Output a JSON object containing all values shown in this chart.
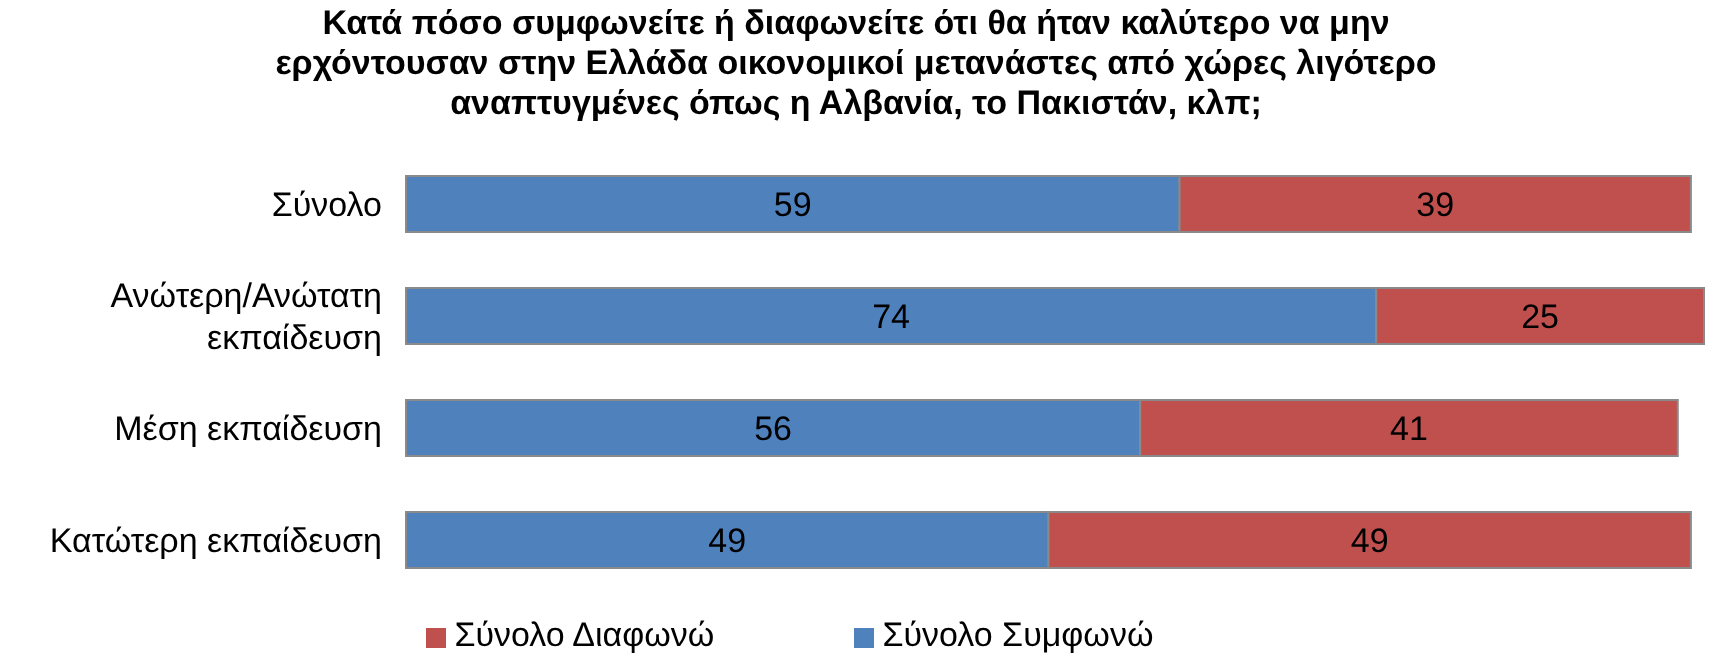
{
  "chart_data": {
    "type": "bar",
    "orientation": "horizontal",
    "stacked": true,
    "title": "Κατά πόσο συμφωνείτε ή διαφωνείτε ότι θα ήταν καλύτερο να μην ερχόντουσαν στην Ελλάδα οικονομικοί μετανάστες από χώρες λιγότερο αναπτυγμένες όπως η Αλβανία, το Πακιστάν, κλπ;",
    "categories": [
      "Σύνολο",
      "Ανώτερη/Ανώτατη εκπαίδευση",
      "Μέση εκπαίδευση",
      "Κατώτερη εκπαίδευση"
    ],
    "series": [
      {
        "name": "Σύνολο Συμφωνώ",
        "color": "#4f81bd",
        "values": [
          59,
          74,
          56,
          49
        ]
      },
      {
        "name": "Σύνολο Διαφωνώ",
        "color": "#c0504d",
        "values": [
          39,
          25,
          41,
          49
        ]
      }
    ],
    "data_labels": true,
    "legend": "bottom",
    "grid": false
  }
}
